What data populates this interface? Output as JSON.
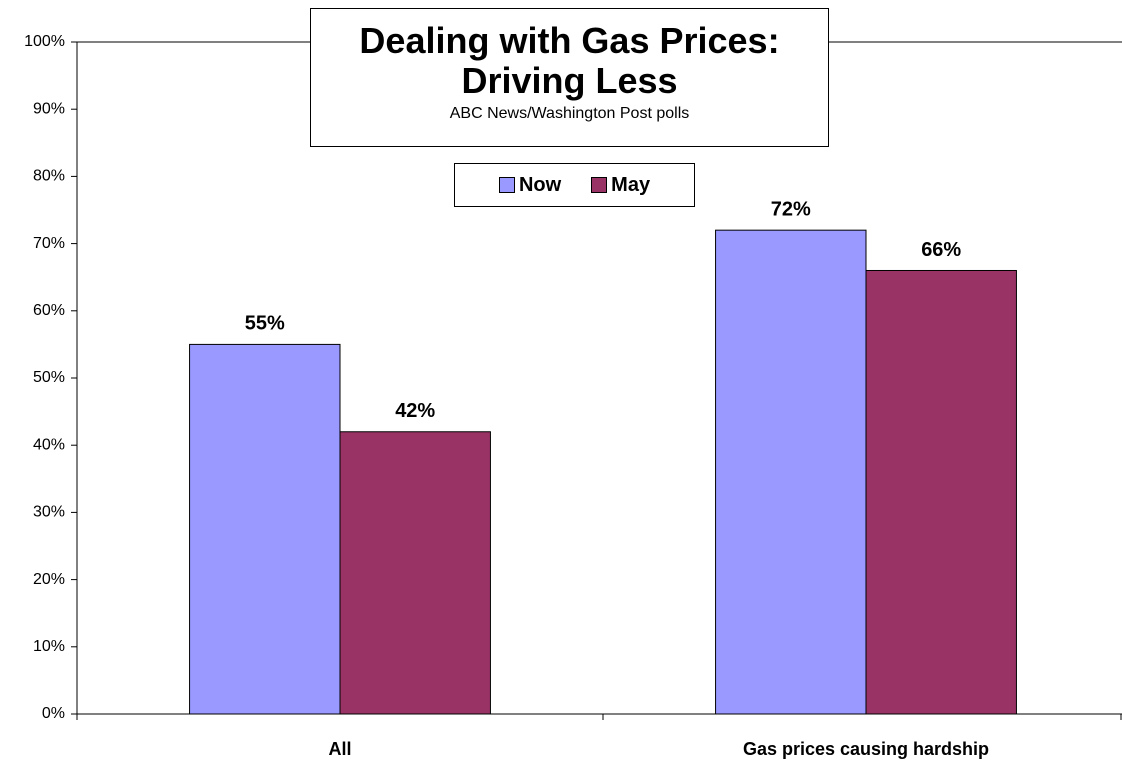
{
  "chart_data": {
    "type": "bar",
    "title": "Dealing with Gas Prices: Driving Less",
    "subtitle": "ABC News/Washington Post polls",
    "categories": [
      "All",
      "Gas prices causing hardship"
    ],
    "series": [
      {
        "name": "Now",
        "color": "#9999ff",
        "values": [
          55,
          72
        ],
        "value_labels": [
          "55%",
          "72%"
        ]
      },
      {
        "name": "May",
        "color": "#993366",
        "values": [
          42,
          66
        ],
        "value_labels": [
          "42%",
          "66%"
        ]
      }
    ],
    "ylim": [
      0,
      100
    ],
    "yticks": [
      {
        "value": 0,
        "label": "0%"
      },
      {
        "value": 10,
        "label": "10%"
      },
      {
        "value": 20,
        "label": "20%"
      },
      {
        "value": 30,
        "label": "30%"
      },
      {
        "value": 40,
        "label": "40%"
      },
      {
        "value": 50,
        "label": "50%"
      },
      {
        "value": 60,
        "label": "60%"
      },
      {
        "value": 70,
        "label": "70%"
      },
      {
        "value": 80,
        "label": "80%"
      },
      {
        "value": 90,
        "label": "90%"
      },
      {
        "value": 100,
        "label": "100%"
      }
    ],
    "grid": false,
    "legend": "top"
  }
}
